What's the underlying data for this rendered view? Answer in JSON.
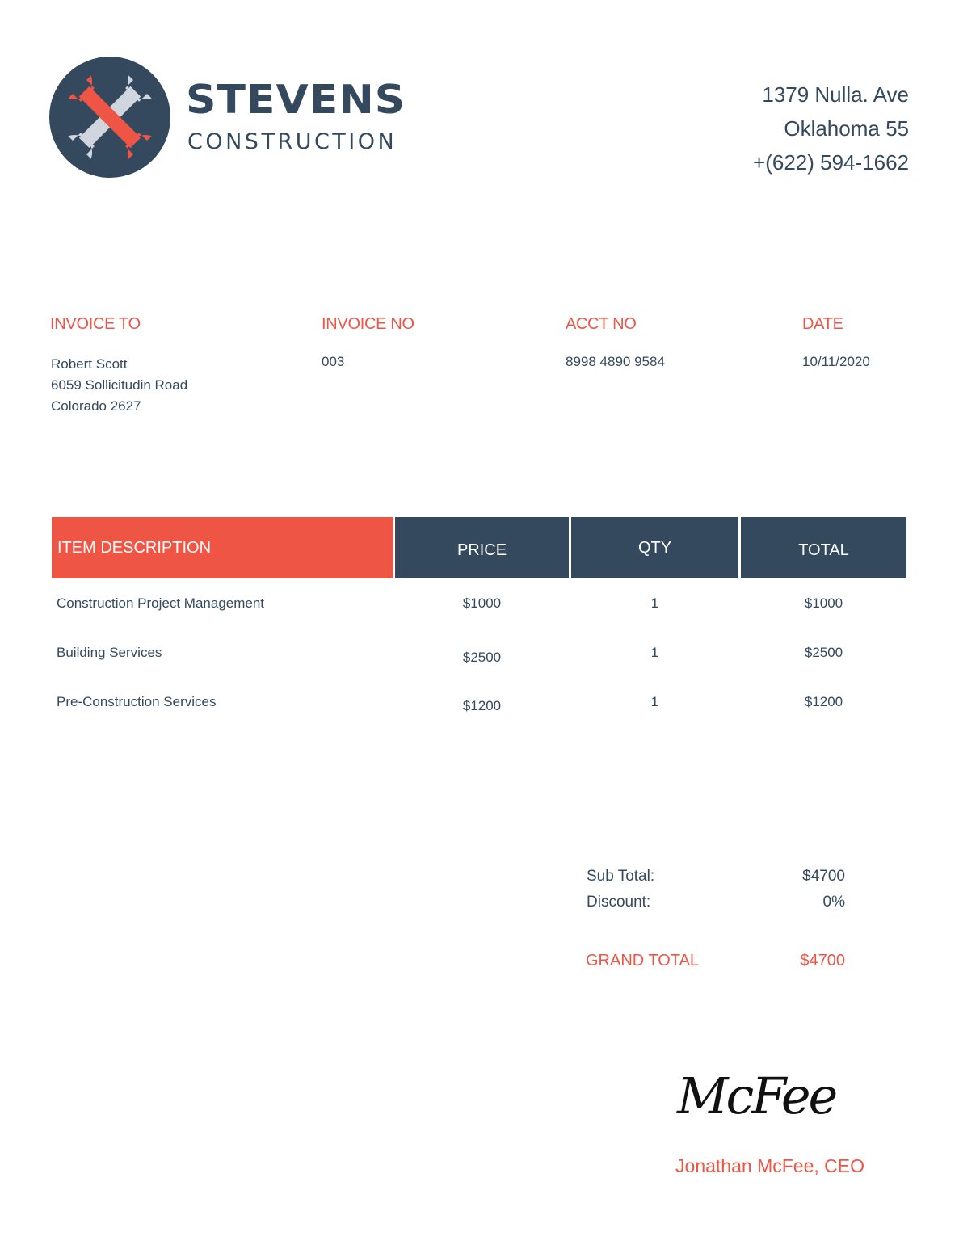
{
  "company": {
    "name": "STEVENS",
    "subtitle": "CONSTRUCTION",
    "logo_icon": "crossed-wrenches-icon",
    "address_lines": [
      "1379 Nulla. Ave",
      "Oklahoma 55",
      "+(622) 594-1662"
    ]
  },
  "colors": {
    "accent": "#ee5545",
    "primary": "#34495e"
  },
  "invoice_to": {
    "label": "INVOICE TO",
    "lines": [
      "Robert Scott",
      "6059 Sollicitudin Road",
      "Colorado 2627"
    ]
  },
  "invoice_no": {
    "label": "INVOICE NO",
    "value": "003"
  },
  "acct_no": {
    "label": "ACCT NO",
    "value": "8998 4890 9584"
  },
  "date": {
    "label": "DATE",
    "value": "10/11/2020"
  },
  "table": {
    "headers": [
      "ITEM DESCRIPTION",
      "PRICE",
      "QTY",
      "TOTAL"
    ],
    "rows": [
      [
        "Construction Project Management",
        "$1000",
        "1",
        "$1000"
      ],
      [
        "Building Services",
        "$2500",
        "1",
        "$2500"
      ],
      [
        "Pre-Construction Services",
        "$1200",
        "1",
        "$1200"
      ]
    ]
  },
  "totals": {
    "subtotal_label": "Sub Total:",
    "subtotal": "$4700",
    "discount_label": "Discount:",
    "discount": "0%",
    "grand_label": "GRAND TOTAL",
    "grand": "$4700"
  },
  "signature": {
    "text": "McFee",
    "signer": "Jonathan McFee, CEO"
  }
}
